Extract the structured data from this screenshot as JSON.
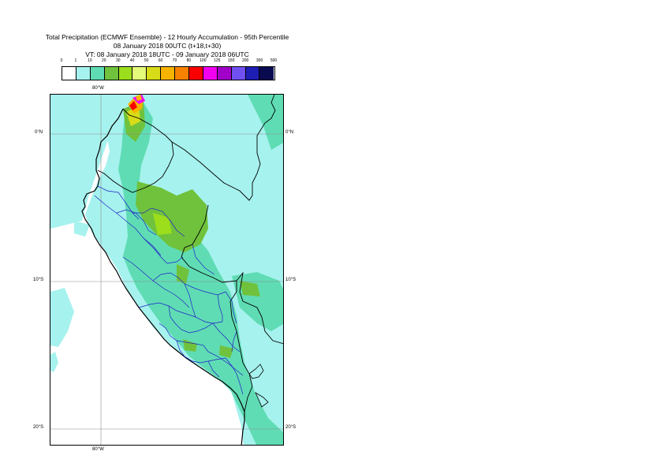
{
  "title": {
    "line1": "Total Precipitation (ECMWF Ensemble) - 12 Hourly Accumulation - 95th Percentile",
    "line2": "08 January 2018 00UTC (t+18,t+30)",
    "line3": "VT: 08 January 2018 18UTC - 09 January 2018 06UTC"
  },
  "legend": {
    "thresholds": [
      "0",
      "1",
      "10",
      "20",
      "30",
      "40",
      "50",
      "60",
      "70",
      "80",
      "100",
      "125",
      "150",
      "200",
      "300",
      "500"
    ],
    "colors": [
      "#ffffff",
      "#a6f2ee",
      "#5fdcb4",
      "#70c23c",
      "#9cde1c",
      "#e4fa7a",
      "#d8dc18",
      "#f6b400",
      "#f68200",
      "#fa0000",
      "#f200f0",
      "#a000c8",
      "#7050f0",
      "#1e1eb4",
      "#0a0a50"
    ]
  },
  "map": {
    "lon_top_label": "80°W",
    "lon_bottom_label": "80°W",
    "lat_labels": [
      "0°N",
      "10°S",
      "20°S"
    ],
    "colors": {
      "ocean": "#ffffff",
      "coast": "#000000",
      "admin1": "#2020c8",
      "grid": "#8c8c8c"
    }
  }
}
